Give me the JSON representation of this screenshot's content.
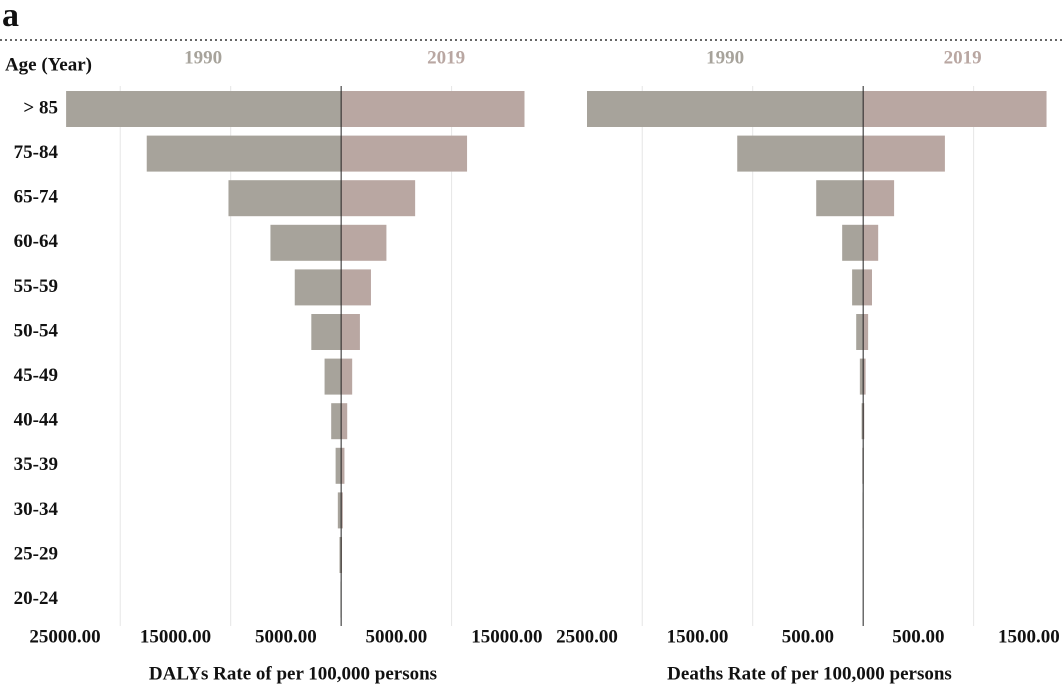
{
  "panel_label": "a",
  "chart_data": [
    {
      "type": "pyramid",
      "ylabel": "Age (Year)",
      "xlabel": "DALYs Rate of per 100,000 persons",
      "categories": [
        "> 85",
        "75-84",
        "65-74",
        "60-64",
        "55-59",
        "50-54",
        "45-49",
        "40-44",
        "35-39",
        "30-34",
        "25-29",
        "20-24"
      ],
      "series": [
        {
          "name": "1990",
          "color": "#a7a39b",
          "values": [
            24900,
            17600,
            10200,
            6400,
            4200,
            2700,
            1500,
            900,
            500,
            300,
            150,
            50
          ]
        },
        {
          "name": "2019",
          "color": "#b9a7a2",
          "values": [
            16600,
            11400,
            6700,
            4100,
            2700,
            1700,
            1000,
            550,
            300,
            150,
            80,
            30
          ]
        }
      ],
      "xlim": [
        -25000,
        19000
      ],
      "xticks": [
        {
          "value": -25000,
          "label": "25000.00"
        },
        {
          "value": -15000,
          "label": "15000.00"
        },
        {
          "value": -5000,
          "label": "5000.00"
        },
        {
          "value": 5000,
          "label": "5000.00"
        },
        {
          "value": 15000,
          "label": "15000.00"
        }
      ],
      "xgrid": [
        -20000,
        -10000,
        10000
      ]
    },
    {
      "type": "pyramid",
      "xlabel": "Deaths Rate of per 100,000 persons",
      "series": [
        {
          "name": "1990",
          "color": "#a7a39b",
          "values": [
            2500,
            1140,
            425,
            190,
            100,
            63,
            30,
            14,
            7,
            4,
            2,
            1
          ]
        },
        {
          "name": "2019",
          "color": "#b9a7a2",
          "values": [
            1660,
            740,
            280,
            136,
            80,
            45,
            22,
            10,
            5,
            3,
            1.5,
            0.8
          ]
        }
      ],
      "xlim": [
        -2500,
        1800
      ],
      "xticks": [
        {
          "value": -2500,
          "label": "2500.00"
        },
        {
          "value": -1500,
          "label": "1500.00"
        },
        {
          "value": -500,
          "label": "500.00"
        },
        {
          "value": 500,
          "label": "500.00"
        },
        {
          "value": 1500,
          "label": "1500.00"
        }
      ],
      "xgrid": [
        -2000,
        -1000,
        1000
      ]
    }
  ]
}
